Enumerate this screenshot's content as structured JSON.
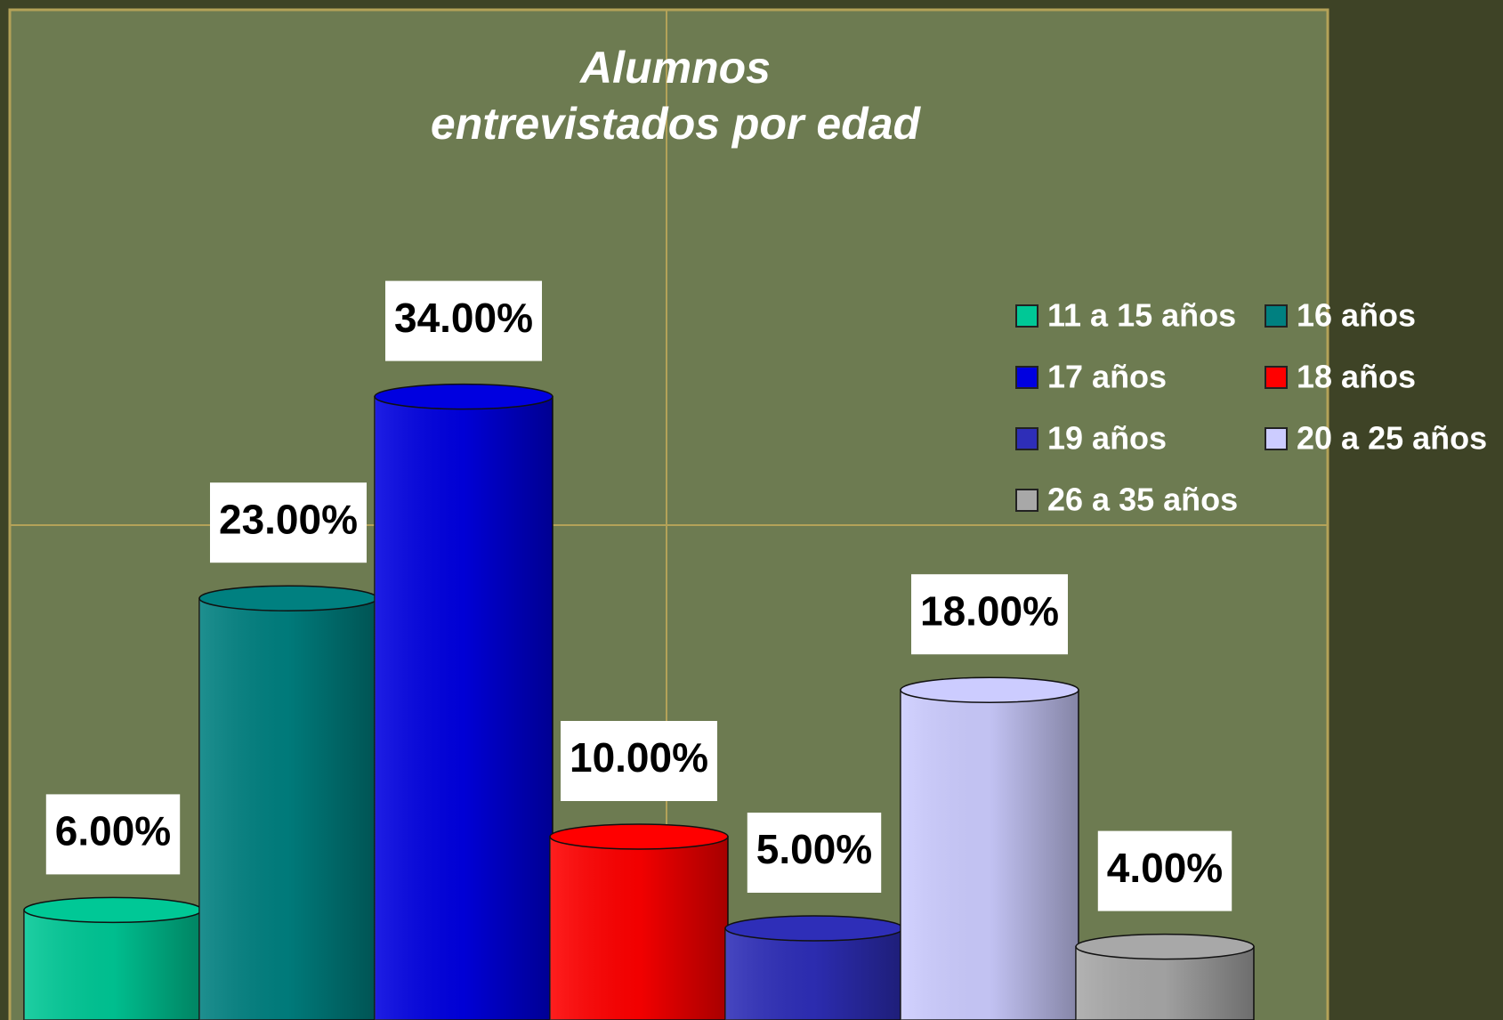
{
  "chart_data": {
    "type": "bar",
    "title": [
      "Alumnos",
      "entrevistados por edad"
    ],
    "series": [
      {
        "name": "11 a 15 años",
        "color": "#00c896",
        "values": [
          6
        ],
        "value_labels": [
          "6.00%"
        ]
      },
      {
        "name": "16 años",
        "color": "#008080",
        "values": [
          23
        ],
        "value_labels": [
          "23.00%"
        ]
      },
      {
        "name": "17 años",
        "color": "#0000e0",
        "values": [
          34
        ],
        "value_labels": [
          "34.00%"
        ]
      },
      {
        "name": "18 años",
        "color": "#ff0000",
        "values": [
          10
        ],
        "value_labels": [
          "10.00%"
        ]
      },
      {
        "name": "19 años",
        "color": "#2e2eb8",
        "values": [
          5
        ],
        "value_labels": [
          "5.00%"
        ]
      },
      {
        "name": "20 a 25 años",
        "color": "#ccccff",
        "values": [
          18
        ],
        "value_labels": [
          "18.00%"
        ]
      },
      {
        "name": "26 a 35 años",
        "color": "#a8a8a8",
        "values": [
          4
        ],
        "value_labels": [
          "4.00%"
        ]
      }
    ],
    "grid": true
  }
}
